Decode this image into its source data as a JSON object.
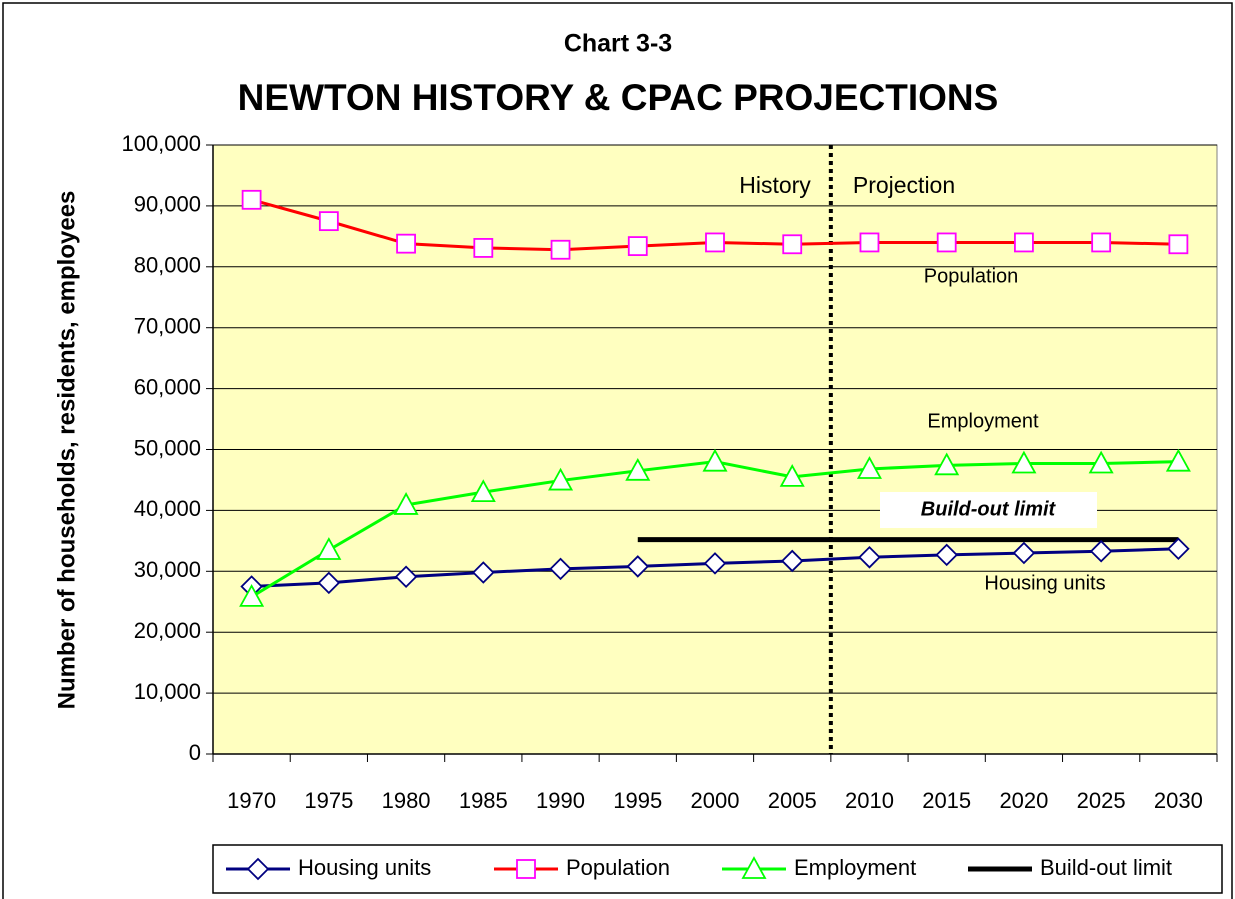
{
  "chart_data": {
    "type": "line",
    "title": "Chart 3-3",
    "subtitle": "NEWTON HISTORY & CPAC PROJECTIONS",
    "y_label": "Number of households, residents, employees",
    "categories": [
      "1970",
      "1975",
      "1980",
      "1985",
      "1990",
      "1995",
      "2000",
      "2005",
      "2010",
      "2015",
      "2020",
      "2025",
      "2030"
    ],
    "series": [
      {
        "name": "Housing units",
        "color": "#000080",
        "marker": "diamond",
        "values": [
          27500,
          28100,
          29100,
          29800,
          30400,
          30800,
          31300,
          31700,
          32300,
          32700,
          33000,
          33300,
          33700
        ]
      },
      {
        "name": "Population",
        "color": "#ff0000",
        "marker_color": "#ff00ff",
        "marker": "square",
        "values": [
          91000,
          87500,
          83800,
          83100,
          82800,
          83400,
          84000,
          83700,
          84000,
          84000,
          84000,
          84000,
          83700
        ]
      },
      {
        "name": "Employment",
        "color": "#00ff00",
        "marker": "triangle",
        "values": [
          25800,
          33500,
          40900,
          43000,
          44900,
          46500,
          48000,
          45500,
          46800,
          47400,
          47700,
          47700,
          48000
        ]
      },
      {
        "name": "Build-out limit",
        "color": "#000000",
        "marker": "none",
        "values": [
          null,
          null,
          null,
          null,
          null,
          35200,
          35200,
          35200,
          35200,
          35200,
          35200,
          35200,
          35200
        ]
      }
    ],
    "annotations": [
      "History",
      "Projection",
      "Population",
      "Employment",
      "Build-out limit",
      "Housing units"
    ],
    "ylim": [
      0,
      100000
    ],
    "yticks": [
      0,
      {
        "value": 10000,
        "label": "10,000"
      },
      {
        "value": 20000,
        "label": "20,000"
      },
      {
        "value": 30000,
        "label": "30,000"
      },
      {
        "value": 40000,
        "label": "40,000"
      },
      {
        "value": 50000,
        "label": "50,000"
      },
      {
        "value": 60000,
        "label": "60,000"
      },
      {
        "value": 70000,
        "label": "70,000"
      },
      {
        "value": 80000,
        "label": "80,000"
      },
      {
        "value": 90000,
        "label": "90,000"
      },
      {
        "value": 100000,
        "label": "100,000"
      }
    ],
    "grid": true,
    "legend": "bottom",
    "plot_background": "#ffffc0"
  }
}
